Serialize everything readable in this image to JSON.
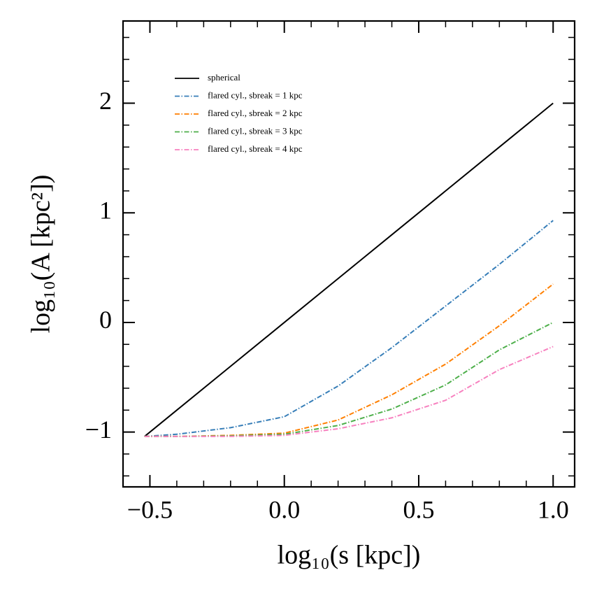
{
  "chart_data": {
    "type": "line",
    "x_label": "log₁₀(s [kpc])",
    "y_label": "log₁₀(A [kpc²])",
    "x": [
      -0.52,
      -0.4,
      -0.2,
      0,
      0.2,
      0.4,
      0.6,
      0.8,
      1.0
    ],
    "series": [
      {
        "name": "spherical",
        "color": "#000000",
        "style": "solid",
        "values": [
          -1.04,
          -0.8,
          -0.4,
          0,
          0.4,
          0.8,
          1.2,
          1.6,
          2.0
        ]
      },
      {
        "name": "flared cyl., sbreak = 1 kpc",
        "color": "#377eb8",
        "style": "dashdot",
        "values": [
          -1.04,
          -1.02,
          -0.96,
          -0.86,
          -0.58,
          -0.23,
          0.15,
          0.53,
          0.93
        ]
      },
      {
        "name": "flared cyl., sbreak = 2 kpc",
        "color": "#ff7f00",
        "style": "dashdot",
        "values": [
          -1.04,
          -1.04,
          -1.03,
          -1.01,
          -0.89,
          -0.66,
          -0.38,
          -0.03,
          0.35
        ]
      },
      {
        "name": "flared cyl., sbreak = 3 kpc",
        "color": "#4daf4a",
        "style": "dashdot",
        "values": [
          -1.04,
          -1.04,
          -1.035,
          -1.02,
          -0.94,
          -0.79,
          -0.57,
          -0.25,
          0.0
        ]
      },
      {
        "name": "flared cyl., sbreak = 4 kpc",
        "color": "#f781bf",
        "style": "dashdot",
        "values": [
          -1.04,
          -1.04,
          -1.04,
          -1.03,
          -0.97,
          -0.87,
          -0.71,
          -0.43,
          -0.22
        ]
      }
    ],
    "xlim": [
      -0.6,
      1.08
    ],
    "ylim": [
      -1.5,
      2.75
    ],
    "xticks": [
      {
        "value": -0.5,
        "label": "−0.5"
      },
      {
        "value": 0,
        "label": "0.0"
      },
      0.5,
      {
        "value": 1,
        "label": "1.0"
      }
    ],
    "yticks": [
      {
        "value": -1,
        "label": "−1"
      },
      0,
      1,
      2
    ],
    "xminorticks": [
      -0.4,
      -0.3,
      -0.2,
      -0.1,
      0.1,
      0.2,
      0.3,
      0.4,
      0.6,
      0.7,
      0.8,
      0.9
    ],
    "yminorticks": [
      -1.4,
      -1.2,
      -0.8,
      -0.6,
      -0.4,
      -0.2,
      0.2,
      0.4,
      0.6,
      0.8,
      1.2,
      1.4,
      1.6,
      1.8,
      2.2,
      2.4,
      2.6
    ],
    "legend": "upper left"
  }
}
